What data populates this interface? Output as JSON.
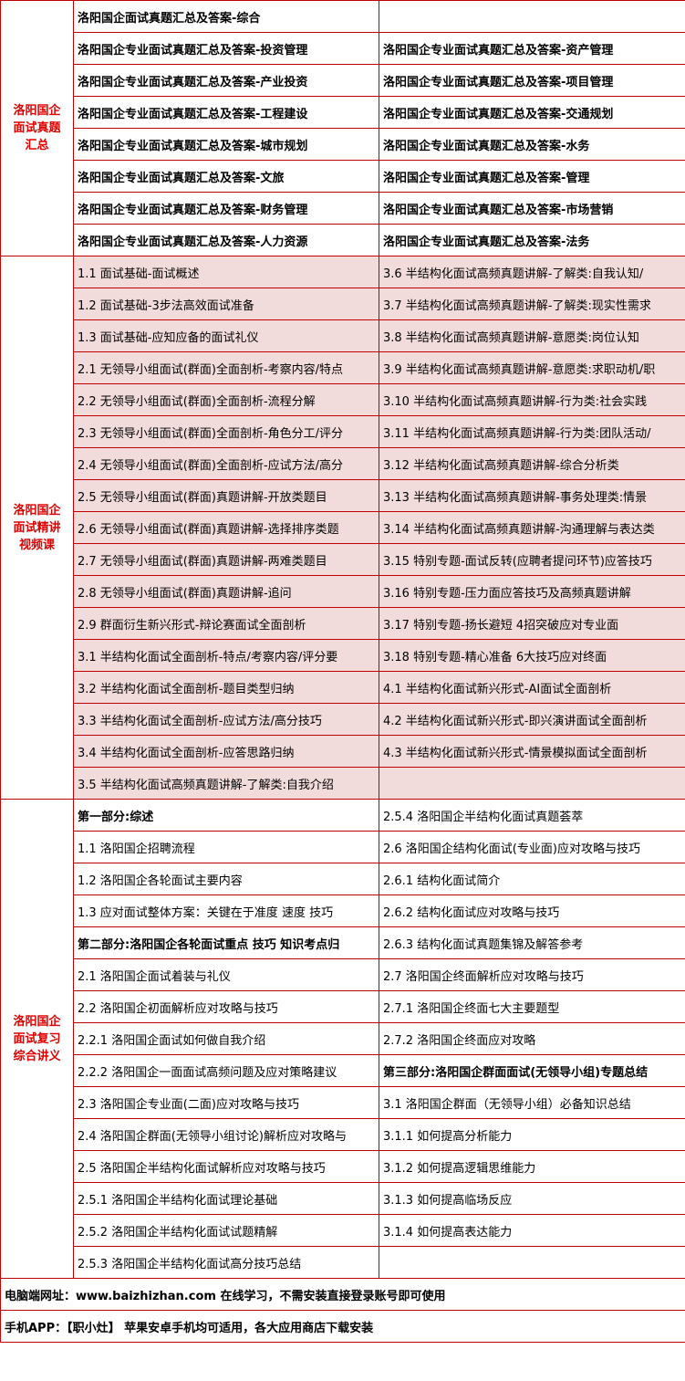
{
  "sections": [
    {
      "title": "洛阳国企面试真题汇总",
      "bold": true,
      "shaded": false,
      "rows": [
        [
          "洛阳国企面试真题汇总及答案-综合",
          null
        ],
        [
          "洛阳国企专业面试真题汇总及答案-投资管理",
          "洛阳国企专业面试真题汇总及答案-资产管理"
        ],
        [
          "洛阳国企专业面试真题汇总及答案-产业投资",
          "洛阳国企专业面试真题汇总及答案-项目管理"
        ],
        [
          "洛阳国企专业面试真题汇总及答案-工程建设",
          "洛阳国企专业面试真题汇总及答案-交通规划"
        ],
        [
          "洛阳国企专业面试真题汇总及答案-城市规划",
          "洛阳国企专业面试真题汇总及答案-水务"
        ],
        [
          "洛阳国企专业面试真题汇总及答案-文旅",
          "洛阳国企专业面试真题汇总及答案-管理"
        ],
        [
          "洛阳国企专业面试真题汇总及答案-财务管理",
          "洛阳国企专业面试真题汇总及答案-市场营销"
        ],
        [
          "洛阳国企专业面试真题汇总及答案-人力资源",
          "洛阳国企专业面试真题汇总及答案-法务"
        ]
      ]
    },
    {
      "title": "洛阳国企面试精讲视频课",
      "bold": false,
      "shaded": true,
      "rows": [
        [
          "1.1 面试基础-面试概述",
          "3.6 半结构化面试高频真题讲解-了解类:自我认知/"
        ],
        [
          "1.2 面试基础-3步法高效面试准备",
          "3.7 半结构化面试高频真题讲解-了解类:现实性需求"
        ],
        [
          "1.3 面试基础-应知应备的面试礼仪",
          "3.8 半结构化面试高频真题讲解-意愿类:岗位认知"
        ],
        [
          "2.1 无领导小组面试(群面)全面剖析-考察内容/特点",
          "3.9 半结构化面试高频真题讲解-意愿类:求职动机/职"
        ],
        [
          "2.2 无领导小组面试(群面)全面剖析-流程分解",
          "3.10 半结构化面试高频真题讲解-行为类:社会实践"
        ],
        [
          "2.3 无领导小组面试(群面)全面剖析-角色分工/评分",
          "3.11 半结构化面试高频真题讲解-行为类:团队活动/"
        ],
        [
          "2.4 无领导小组面试(群面)全面剖析-应试方法/高分",
          "3.12 半结构化面试高频真题讲解-综合分析类"
        ],
        [
          "2.5 无领导小组面试(群面)真题讲解-开放类题目",
          "3.13 半结构化面试高频真题讲解-事务处理类:情景"
        ],
        [
          "2.6 无领导小组面试(群面)真题讲解-选择排序类题",
          "3.14 半结构化面试高频真题讲解-沟通理解与表达类"
        ],
        [
          "2.7 无领导小组面试(群面)真题讲解-两难类题目",
          "3.15 特别专题-面试反转(应聘者提问环节)应答技巧"
        ],
        [
          "2.8 无领导小组面试(群面)真题讲解-追问",
          "3.16 特别专题-压力面应答技巧及高频真题讲解"
        ],
        [
          "2.9 群面衍生新兴形式-辩论赛面试全面剖析",
          "3.17 特别专题-扬长避短 4招突破应对专业面"
        ],
        [
          "3.1 半结构化面试全面剖析-特点/考察内容/评分要",
          "3.18 特别专题-精心准备 6大技巧应对终面"
        ],
        [
          "3.2 半结构化面试全面剖析-题目类型归纳",
          "4.1 半结构化面试新兴形式-AI面试全面剖析"
        ],
        [
          "3.3 半结构化面试全面剖析-应试方法/高分技巧",
          "4.2 半结构化面试新兴形式-即兴演讲面试全面剖析"
        ],
        [
          "3.4 半结构化面试全面剖析-应答思路归纳",
          "4.3 半结构化面试新兴形式-情景模拟面试全面剖析"
        ],
        [
          "3.5 半结构化面试高频真题讲解-了解类:自我介绍",
          null
        ]
      ]
    },
    {
      "title": "洛阳国企面试复习综合讲义",
      "bold": false,
      "shaded": false,
      "rows": [
        [
          {
            "text": "第一部分:综述",
            "bold": true
          },
          "2.5.4 洛阳国企半结构化面试真题荟萃"
        ],
        [
          "1.1 洛阳国企招聘流程",
          "2.6 洛阳国企结构化面试(专业面)应对攻略与技巧"
        ],
        [
          "1.2 洛阳国企各轮面试主要内容",
          "2.6.1 结构化面试简介"
        ],
        [
          "1.3 应对面试整体方案：关键在于准度 速度 技巧",
          "2.6.2 结构化面试应对攻略与技巧"
        ],
        [
          {
            "text": "第二部分:洛阳国企各轮面试重点 技巧 知识考点归",
            "bold": true
          },
          "2.6.3 结构化面试真题集锦及解答参考"
        ],
        [
          "2.1 洛阳国企面试着装与礼仪",
          "2.7 洛阳国企终面解析应对攻略与技巧"
        ],
        [
          "2.2 洛阳国企初面解析应对攻略与技巧",
          "2.7.1 洛阳国企终面七大主要题型"
        ],
        [
          "2.2.1 洛阳国企面试如何做自我介绍",
          "2.7.2 洛阳国企终面应对攻略"
        ],
        [
          "2.2.2 洛阳国企一面面试高频问题及应对策略建议",
          {
            "text": "第三部分:洛阳国企群面面试(无领导小组)专题总结",
            "bold": true
          }
        ],
        [
          "2.3 洛阳国企专业面(二面)应对攻略与技巧",
          "3.1 洛阳国企群面（无领导小组）必备知识总结"
        ],
        [
          "2.4 洛阳国企群面(无领导小组讨论)解析应对攻略与",
          "3.1.1  如何提高分析能力"
        ],
        [
          "2.5 洛阳国企半结构化面试解析应对攻略与技巧",
          "3.1.2  如何提高逻辑思维能力"
        ],
        [
          "2.5.1 洛阳国企半结构化面试理论基础",
          "3.1.3  如何提高临场反应"
        ],
        [
          "2.5.2 洛阳国企半结构化面试试题精解",
          "3.1.4  如何提高表达能力"
        ],
        [
          "2.5.3 洛阳国企半结构化面试高分技巧总结",
          null
        ]
      ]
    }
  ],
  "footer": [
    "电脑端网址：www.baizhizhan.com 在线学习，不需安装直接登录账号即可使用",
    "手机APP：【职小灶】 苹果安卓手机均可适用，各大应用商店下载安装"
  ]
}
